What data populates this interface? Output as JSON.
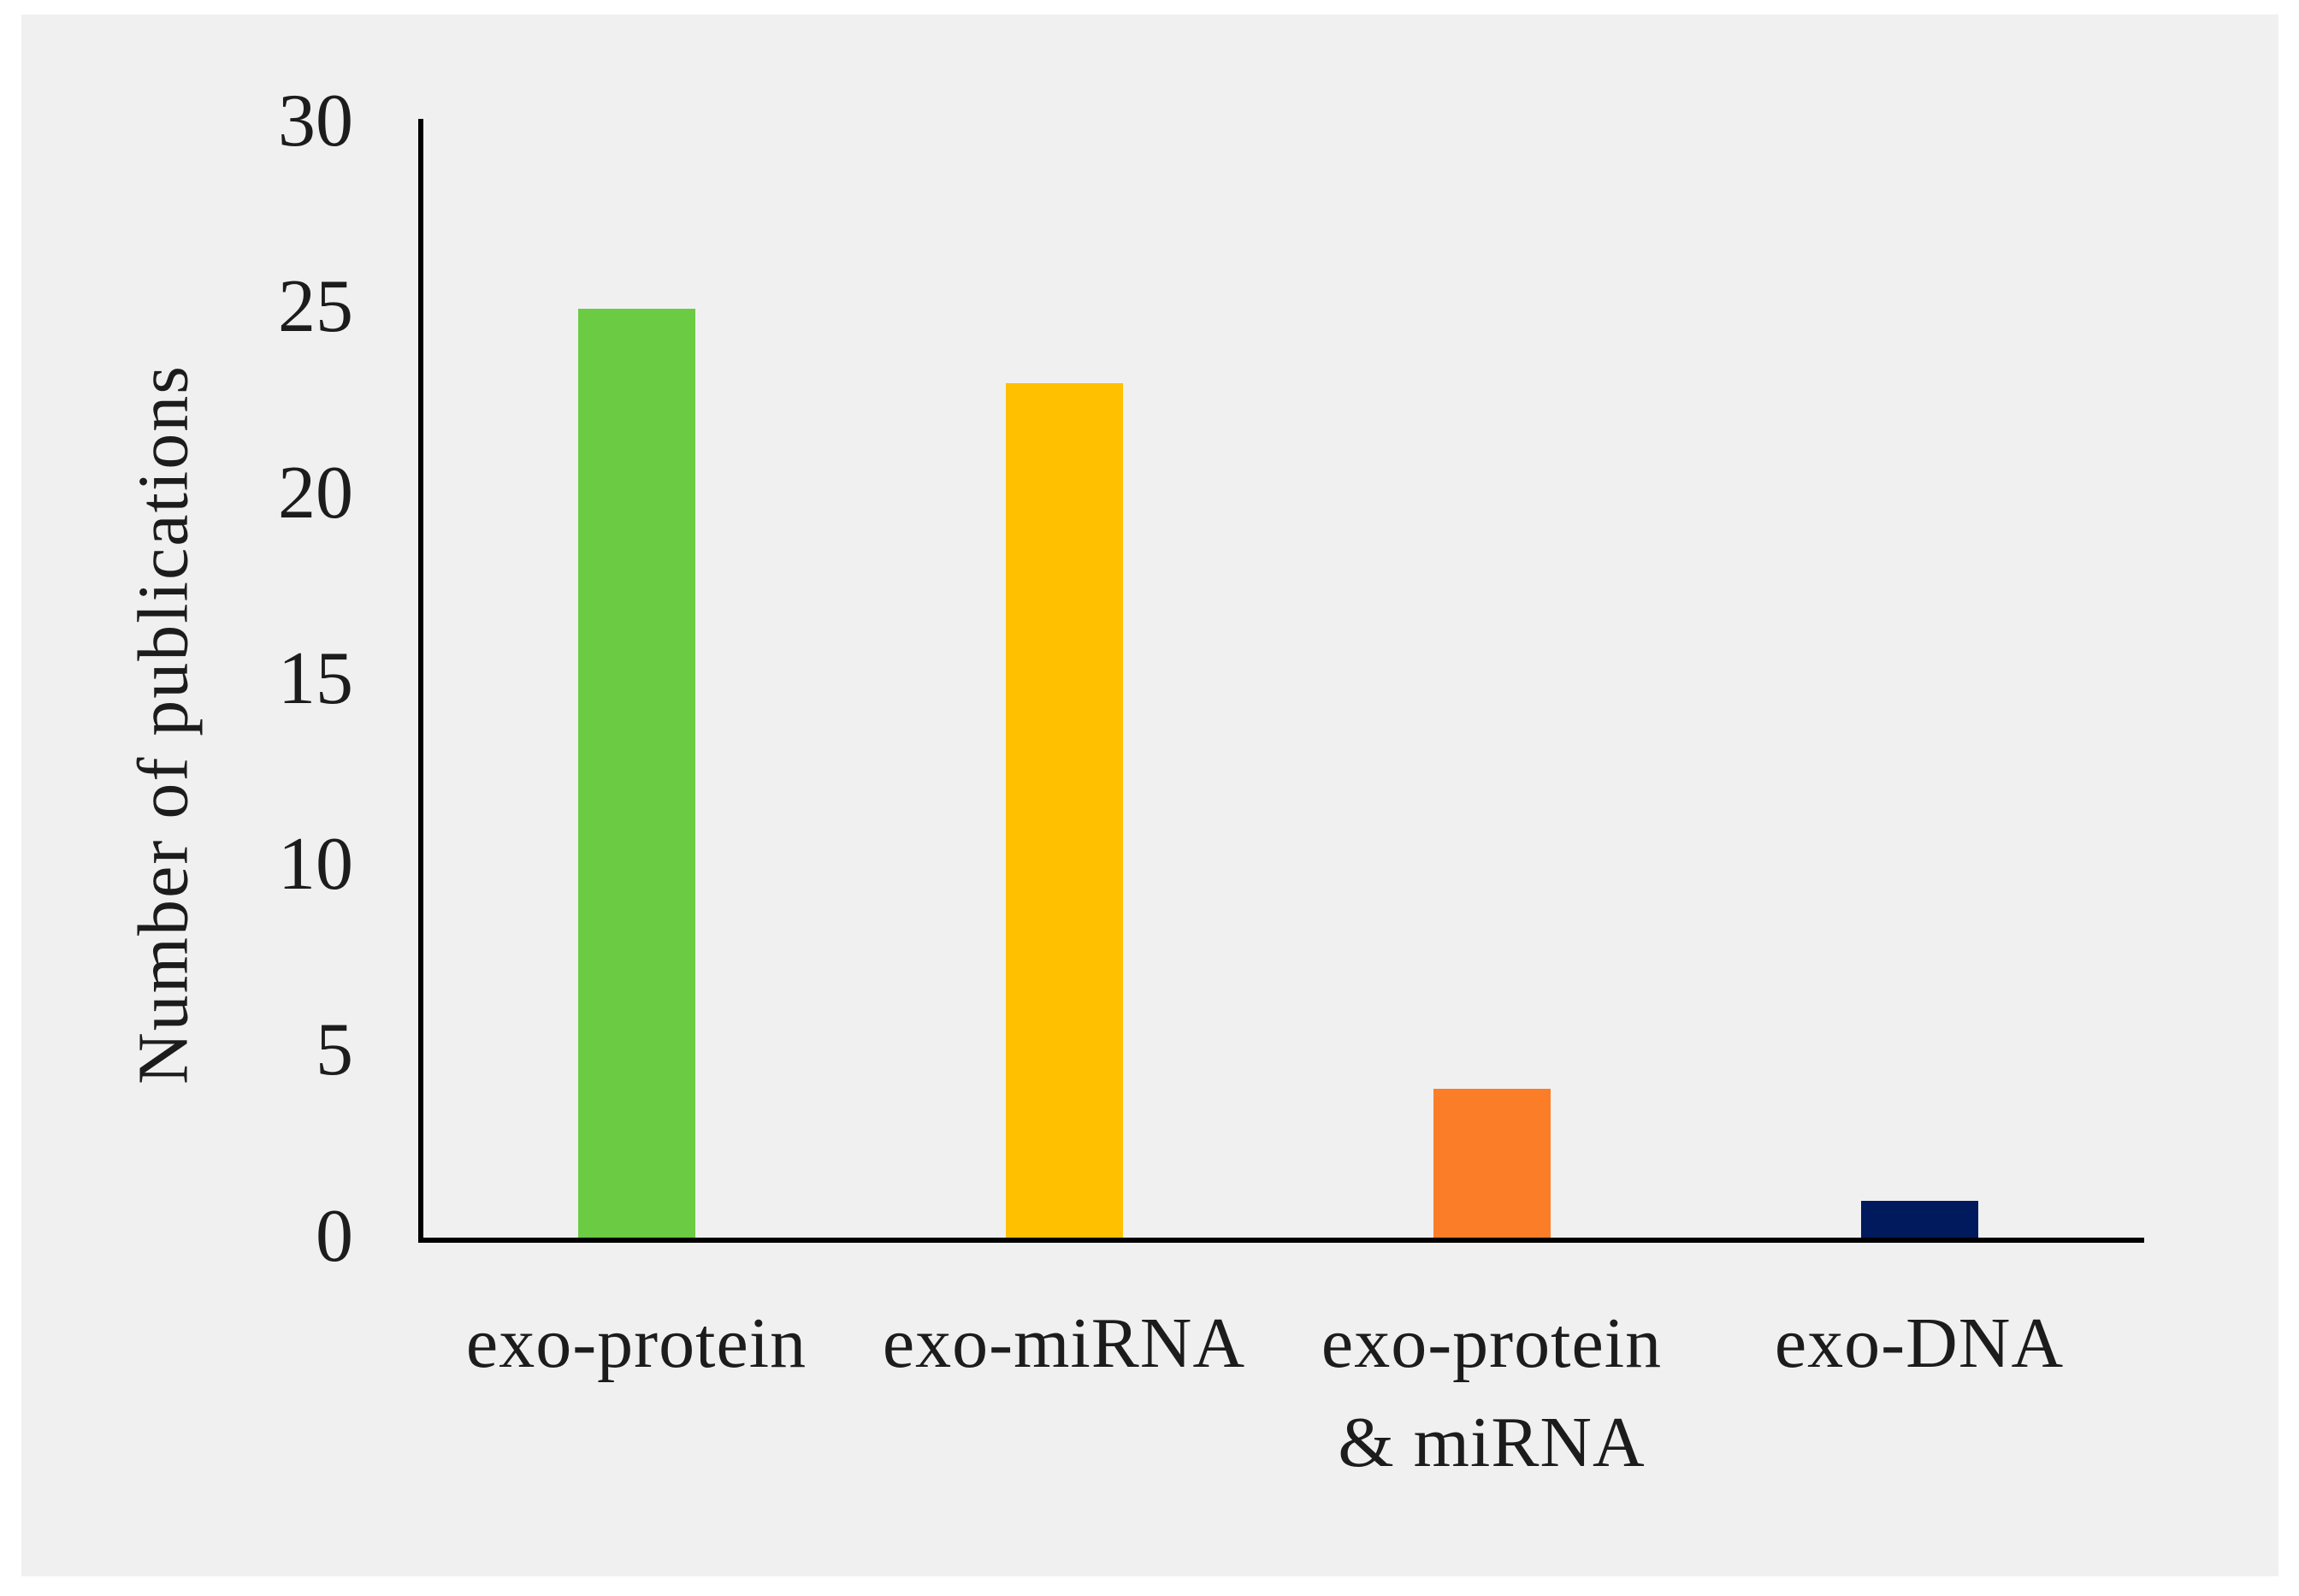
{
  "figure": {
    "panel_background": "#F0F0F1",
    "axis_color": "#000000",
    "text_color": "#1c1c1c"
  },
  "chart_data": {
    "type": "bar",
    "title": "",
    "xlabel": "",
    "ylabel": "Number of publications",
    "categories": [
      "exo-protein",
      "exo-miRNA",
      "exo-protein & miRNA",
      "exo-DNA"
    ],
    "category_lines": [
      [
        "exo-protein"
      ],
      [
        "exo-miRNA"
      ],
      [
        "exo-protein",
        "& miRNA"
      ],
      [
        "exo-DNA"
      ]
    ],
    "values": [
      25,
      23,
      4,
      1
    ],
    "bar_colors": [
      "#6BCB43",
      "#FFC000",
      "#FC7D27",
      "#011A5E"
    ],
    "ylim": [
      0,
      30
    ],
    "yticks": [
      0,
      5,
      10,
      15,
      20,
      25,
      30
    ],
    "grid": false,
    "legend": "none"
  }
}
